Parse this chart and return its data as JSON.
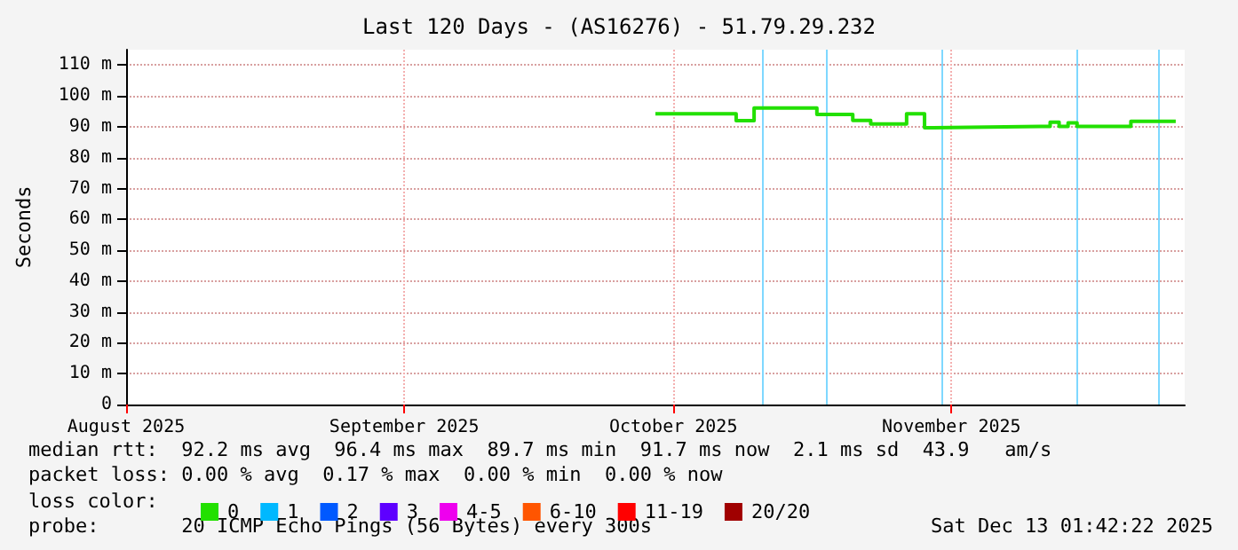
{
  "chart_data": {
    "type": "step",
    "title": "Last 120 Days - (AS16276) - 51.79.29.232",
    "ylabel": "Seconds",
    "xlim": [
      "2025-08-01",
      "2025-11-27"
    ],
    "xticks": [
      {
        "value": "2025-08-01",
        "label": "August 2025"
      },
      {
        "value": "2025-09-01",
        "label": "September 2025"
      },
      {
        "value": "2025-10-01",
        "label": "October 2025"
      },
      {
        "value": "2025-11-01",
        "label": "November 2025"
      }
    ],
    "ylim": [
      0,
      115
    ],
    "yticks": [
      0,
      {
        "value": 10,
        "label": "10 m"
      },
      {
        "value": 20,
        "label": "20 m"
      },
      {
        "value": 30,
        "label": "30 m"
      },
      {
        "value": 40,
        "label": "40 m"
      },
      {
        "value": 50,
        "label": "50 m"
      },
      {
        "value": 60,
        "label": "60 m"
      },
      {
        "value": 70,
        "label": "70 m"
      },
      {
        "value": 80,
        "label": "80 m"
      },
      {
        "value": 90,
        "label": "90 m"
      },
      {
        "value": 100,
        "label": "100 m"
      },
      {
        "value": 110,
        "label": "110 m"
      }
    ],
    "grid": true,
    "legend": "bottom",
    "series": [
      {
        "name": "0",
        "color": "#22e000",
        "x": [
          "2025-09-29",
          "2025-10-07",
          "2025-10-08",
          "2025-10-09",
          "2025-10-10",
          "2025-10-16",
          "2025-10-17",
          "2025-10-20",
          "2025-10-21",
          "2025-10-22",
          "2025-10-23",
          "2025-10-26",
          "2025-10-27",
          "2025-10-28",
          "2025-10-29",
          "2025-10-30",
          "2025-11-11",
          "2025-11-12",
          "2025-11-13",
          "2025-11-14",
          "2025-11-15",
          "2025-11-20",
          "2025-11-21",
          "2025-11-26"
        ],
        "values": [
          94.2,
          94.2,
          92.0,
          92.0,
          96.1,
          96.1,
          94.0,
          94.0,
          92.1,
          92.1,
          90.9,
          90.9,
          94.2,
          94.2,
          89.7,
          90.1,
          90.1,
          91.5,
          90.1,
          91.3,
          90.1,
          90.1,
          91.8,
          91.8
        ]
      },
      {
        "name": "1",
        "color": "#00b8ff"
      },
      {
        "name": "2",
        "color": "#0059ff"
      },
      {
        "name": "3",
        "color": "#5e00ff"
      },
      {
        "name": "4-5",
        "color": "#ee00ee"
      },
      {
        "name": "6-10",
        "color": "#ff5500"
      },
      {
        "name": "11-19",
        "color": "#ff0000"
      },
      {
        "name": "20/20",
        "color": "#a00000"
      }
    ],
    "ref_lines": [
      {
        "axis": "x",
        "value": "2025-10-11",
        "color": "#7fd8ff"
      },
      {
        "axis": "x",
        "value": "2025-10-18",
        "color": "#7fd8ff"
      },
      {
        "axis": "x",
        "value": "2025-10-31",
        "color": "#7fd8ff"
      },
      {
        "axis": "x",
        "value": "2025-11-15",
        "color": "#7fd8ff"
      },
      {
        "axis": "x",
        "value": "2025-11-24",
        "color": "#7fd8ff"
      }
    ],
    "annotations": [
      "median rtt:  92.2 ms avg  96.4 ms max  89.7 ms min  91.7 ms now  2.1 ms sd  43.9   am/s",
      "packet loss: 0.00 % avg  0.17 % max  0.00 % min  0.00 % now",
      "loss color:",
      "probe:       20 ICMP Echo Pings (56 Bytes) every 300s",
      "Sat Dec 13 01:42:22 2025"
    ]
  }
}
